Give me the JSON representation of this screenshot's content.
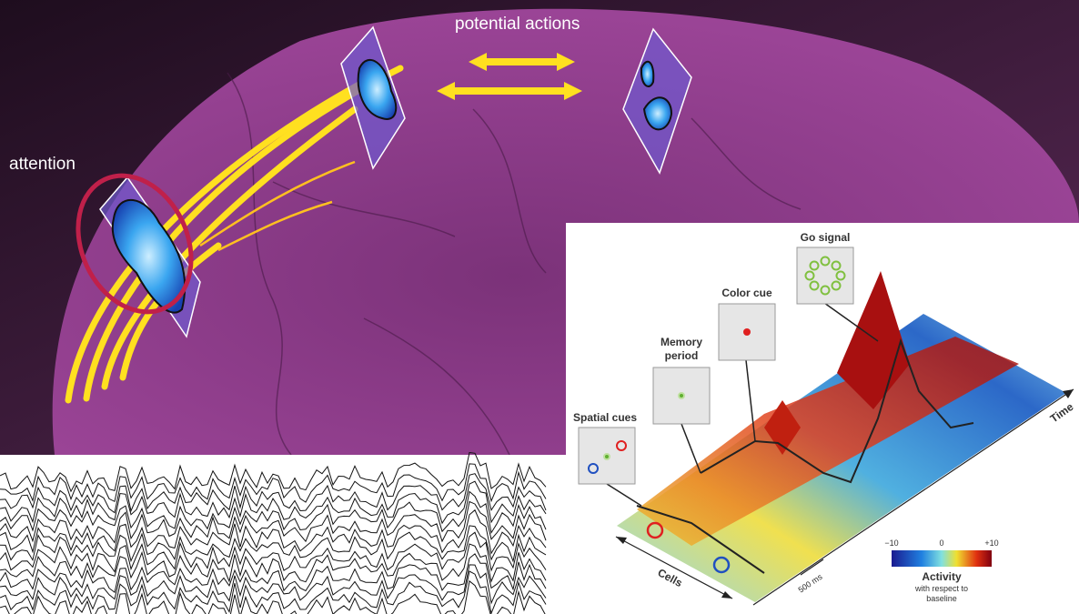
{
  "brain": {
    "potential_actions": "potential actions",
    "attention": "attention"
  },
  "activity_plot": {
    "events": {
      "spatial_cues": "Spatial cues",
      "memory_period": [
        "Memory",
        "period"
      ],
      "color_cue": "Color cue",
      "go_signal": "Go signal"
    },
    "axes": {
      "time": "Time",
      "cells": "Cells",
      "scale_bar": "500 ms"
    },
    "colorbar": {
      "ticks": [
        "−10",
        "0",
        "+10"
      ],
      "title": "Activity",
      "subtitle": [
        "with respect to",
        "baseline"
      ]
    }
  }
}
